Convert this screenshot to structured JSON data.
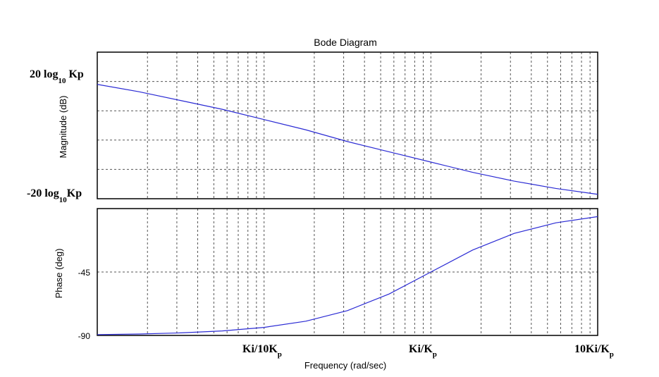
{
  "chart_data": [
    {
      "type": "line",
      "panel": "magnitude",
      "title": "Bode Diagram",
      "ylabel": "Magnitude (dB)",
      "x_scale": "log",
      "xlim": [
        0.01,
        10
      ],
      "ylim": [
        0,
        1
      ],
      "yticks": [
        0.2,
        0.4,
        0.6,
        0.8
      ],
      "annotations": {
        "top": {
          "main": "20 log",
          "sub": "10",
          "tail": " Kp"
        },
        "bottom": {
          "main": "-20 log",
          "sub": "10",
          "tail": "Kp"
        }
      },
      "series": [
        {
          "x": [
            0.01,
            0.0178,
            0.0316,
            0.0562,
            0.1,
            0.178,
            0.316,
            0.562,
            1.0,
            1.78,
            3.16,
            5.62,
            10
          ],
          "values": [
            0.78,
            0.73,
            0.67,
            0.61,
            0.54,
            0.47,
            0.39,
            0.32,
            0.25,
            0.18,
            0.12,
            0.07,
            0.03
          ],
          "color": "#2b2bd4"
        }
      ],
      "grid": true
    },
    {
      "type": "line",
      "panel": "phase",
      "ylabel": "Phase (deg)",
      "xlabel": "Frequency  (rad/sec)",
      "x_scale": "log",
      "xlim": [
        0.01,
        10
      ],
      "ylim": [
        -90,
        0
      ],
      "yticks": [
        -90,
        -45
      ],
      "ytick_labels": [
        "-90",
        "-45"
      ],
      "xtick_labels": [
        {
          "x": 0.1,
          "main": "Ki/10K",
          "sub": "p"
        },
        {
          "x": 1,
          "main": "Ki/K",
          "sub": "p"
        },
        {
          "x": 10,
          "main": "10Ki/K",
          "sub": "p"
        }
      ],
      "series": [
        {
          "x": [
            0.01,
            0.0178,
            0.0316,
            0.0562,
            0.1,
            0.178,
            0.316,
            0.562,
            1.0,
            1.78,
            3.16,
            5.62,
            10
          ],
          "values": [
            -89.4,
            -89.0,
            -88.2,
            -86.8,
            -84.3,
            -79.9,
            -72.4,
            -60.6,
            -45.0,
            -29.4,
            -17.6,
            -10.1,
            -5.7
          ],
          "color": "#2b2bd4"
        }
      ],
      "grid": true
    }
  ]
}
